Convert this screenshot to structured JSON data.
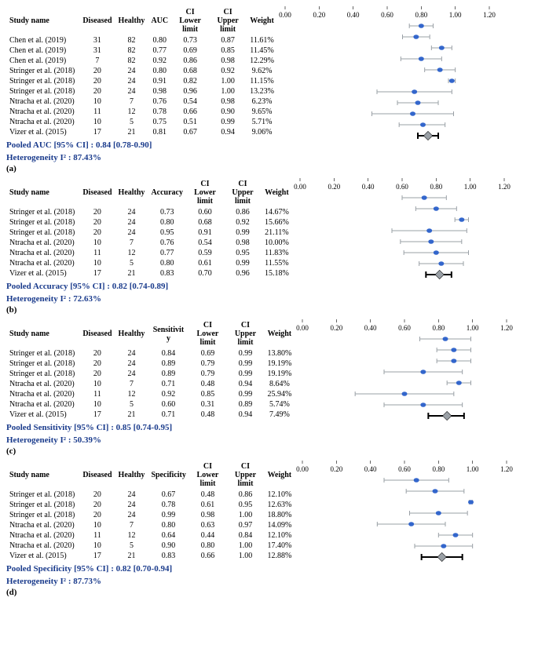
{
  "chart": {
    "xlim": [
      0.0,
      1.2
    ],
    "tick_step": 0.2,
    "axis_color": "#000000",
    "whisker_color": "#9aa0a6",
    "marker_color": "#3366cc",
    "pooled_color": "#000000",
    "pooled_marker": "#9aa0a6",
    "background": "#ffffff",
    "font_family": "Times New Roman",
    "tick_fontsize": 9
  },
  "columns_common": [
    "Study name",
    "Diseased",
    "Healthy"
  ],
  "col_ci_lower": "CI Lower limit",
  "col_ci_upper": "CI Upper limit",
  "col_weight": "Weight",
  "panels": [
    {
      "label": "(a)",
      "metric": "AUC",
      "pooled_text": "Pooled AUC  [95% CI]  : 0.84 [0.78-0.90]",
      "het_text": "Heterogeneity I² : 87.43%",
      "pooled": {
        "est": 0.84,
        "lo": 0.78,
        "hi": 0.9
      },
      "rows": [
        {
          "study": "Chen et al. (2019)",
          "diseased": 31,
          "healthy": 82,
          "est": 0.8,
          "lo": 0.73,
          "hi": 0.87,
          "weight": "11.61%"
        },
        {
          "study": "Chen et al. (2019)",
          "diseased": 31,
          "healthy": 82,
          "est": 0.77,
          "lo": 0.69,
          "hi": 0.85,
          "weight": "11.45%"
        },
        {
          "study": "Chen et al. (2019)",
          "diseased": 7,
          "healthy": 82,
          "est": 0.92,
          "lo": 0.86,
          "hi": 0.98,
          "weight": "12.29%"
        },
        {
          "study": "Stringer et al. (2018)",
          "diseased": 20,
          "healthy": 24,
          "est": 0.8,
          "lo": 0.68,
          "hi": 0.92,
          "weight": "9.62%"
        },
        {
          "study": "Stringer et al. (2018)",
          "diseased": 20,
          "healthy": 24,
          "est": 0.91,
          "lo": 0.82,
          "hi": 1.0,
          "weight": "11.15%"
        },
        {
          "study": "Stringer et al. (2018)",
          "diseased": 20,
          "healthy": 24,
          "est": 0.98,
          "lo": 0.96,
          "hi": 1.0,
          "weight": "13.23%"
        },
        {
          "study": "Ntracha et al. (2020)",
          "diseased": 10,
          "healthy": 7,
          "est": 0.76,
          "lo": 0.54,
          "hi": 0.98,
          "weight": "6.23%"
        },
        {
          "study": "Ntracha et al. (2020)",
          "diseased": 11,
          "healthy": 12,
          "est": 0.78,
          "lo": 0.66,
          "hi": 0.9,
          "weight": "9.65%"
        },
        {
          "study": "Ntracha et al. (2020)",
          "diseased": 10,
          "healthy": 5,
          "est": 0.75,
          "lo": 0.51,
          "hi": 0.99,
          "weight": "5.71%"
        },
        {
          "study": "Vizer et al. (2015)",
          "diseased": 17,
          "healthy": 21,
          "est": 0.81,
          "lo": 0.67,
          "hi": 0.94,
          "weight": "9.06%"
        }
      ]
    },
    {
      "label": "(b)",
      "metric": "Accuracy",
      "pooled_text": "Pooled Accuracy  [95% CI]  : 0.82 [0.74-0.89]",
      "het_text": "Heterogeneity I² : 72.63%",
      "pooled": {
        "est": 0.82,
        "lo": 0.74,
        "hi": 0.89
      },
      "rows": [
        {
          "study": "Stringer et al. (2018)",
          "diseased": 20,
          "healthy": 24,
          "est": 0.73,
          "lo": 0.6,
          "hi": 0.86,
          "weight": "14.67%"
        },
        {
          "study": "Stringer et al. (2018)",
          "diseased": 20,
          "healthy": 24,
          "est": 0.8,
          "lo": 0.68,
          "hi": 0.92,
          "weight": "15.66%"
        },
        {
          "study": "Stringer et al. (2018)",
          "diseased": 20,
          "healthy": 24,
          "est": 0.95,
          "lo": 0.91,
          "hi": 0.99,
          "weight": "21.11%"
        },
        {
          "study": "Ntracha et al. (2020)",
          "diseased": 10,
          "healthy": 7,
          "est": 0.76,
          "lo": 0.54,
          "hi": 0.98,
          "weight": "10.00%"
        },
        {
          "study": "Ntracha et al. (2020)",
          "diseased": 11,
          "healthy": 12,
          "est": 0.77,
          "lo": 0.59,
          "hi": 0.95,
          "weight": "11.83%"
        },
        {
          "study": "Ntracha et al. (2020)",
          "diseased": 10,
          "healthy": 5,
          "est": 0.8,
          "lo": 0.61,
          "hi": 0.99,
          "weight": "11.55%"
        },
        {
          "study": "Vizer et al. (2015)",
          "diseased": 17,
          "healthy": 21,
          "est": 0.83,
          "lo": 0.7,
          "hi": 0.96,
          "weight": "15.18%"
        }
      ]
    },
    {
      "label": "(c)",
      "metric": "Sensitivity",
      "metric_display": "Sensitivit\ny",
      "pooled_text": "Pooled Sensitivity  [95% CI]  : 0.85 [0.74-0.95]",
      "het_text": "Heterogeneity I² : 50.39%",
      "pooled": {
        "est": 0.85,
        "lo": 0.74,
        "hi": 0.95
      },
      "rows": [
        {
          "study": "Stringer et al. (2018)",
          "diseased": 20,
          "healthy": 24,
          "est": 0.84,
          "lo": 0.69,
          "hi": 0.99,
          "weight": "13.80%"
        },
        {
          "study": "Stringer et al. (2018)",
          "diseased": 20,
          "healthy": 24,
          "est": 0.89,
          "lo": 0.79,
          "hi": 0.99,
          "weight": "19.19%"
        },
        {
          "study": "Stringer et al. (2018)",
          "diseased": 20,
          "healthy": 24,
          "est": 0.89,
          "lo": 0.79,
          "hi": 0.99,
          "weight": "19.19%"
        },
        {
          "study": "Ntracha et al. (2020)",
          "diseased": 10,
          "healthy": 7,
          "est": 0.71,
          "lo": 0.48,
          "hi": 0.94,
          "weight": "8.64%"
        },
        {
          "study": "Ntracha et al. (2020)",
          "diseased": 11,
          "healthy": 12,
          "est": 0.92,
          "lo": 0.85,
          "hi": 0.99,
          "weight": "25.94%"
        },
        {
          "study": "Ntracha et al. (2020)",
          "diseased": 10,
          "healthy": 5,
          "est": 0.6,
          "lo": 0.31,
          "hi": 0.89,
          "weight": "5.74%"
        },
        {
          "study": "Vizer et al. (2015)",
          "diseased": 17,
          "healthy": 21,
          "est": 0.71,
          "lo": 0.48,
          "hi": 0.94,
          "weight": "7.49%"
        }
      ]
    },
    {
      "label": "(d)",
      "metric": "Specificity",
      "pooled_text": "Pooled Specificity  [95% CI]  : 0.82 [0.70-0.94]",
      "het_text": "Heterogeneity I² : 87.73%",
      "pooled": {
        "est": 0.82,
        "lo": 0.7,
        "hi": 0.94
      },
      "rows": [
        {
          "study": "Stringer et al. (2018)",
          "diseased": 20,
          "healthy": 24,
          "est": 0.67,
          "lo": 0.48,
          "hi": 0.86,
          "weight": "12.10%"
        },
        {
          "study": "Stringer et al. (2018)",
          "diseased": 20,
          "healthy": 24,
          "est": 0.78,
          "lo": 0.61,
          "hi": 0.95,
          "weight": "12.63%"
        },
        {
          "study": "Stringer et al. (2018)",
          "diseased": 20,
          "healthy": 24,
          "est": 0.99,
          "lo": 0.98,
          "hi": 1.0,
          "weight": "18.80%"
        },
        {
          "study": "Ntracha et al. (2020)",
          "diseased": 10,
          "healthy": 7,
          "est": 0.8,
          "lo": 0.63,
          "hi": 0.97,
          "weight": "14.09%"
        },
        {
          "study": "Ntracha et al. (2020)",
          "diseased": 11,
          "healthy": 12,
          "est": 0.64,
          "lo": 0.44,
          "hi": 0.84,
          "weight": "12.10%"
        },
        {
          "study": "Ntracha et al. (2020)",
          "diseased": 10,
          "healthy": 5,
          "est": 0.9,
          "lo": 0.8,
          "hi": 1.0,
          "weight": "17.40%"
        },
        {
          "study": "Vizer et al. (2015)",
          "diseased": 17,
          "healthy": 21,
          "est": 0.83,
          "lo": 0.66,
          "hi": 1.0,
          "weight": "12.88%"
        }
      ]
    }
  ]
}
